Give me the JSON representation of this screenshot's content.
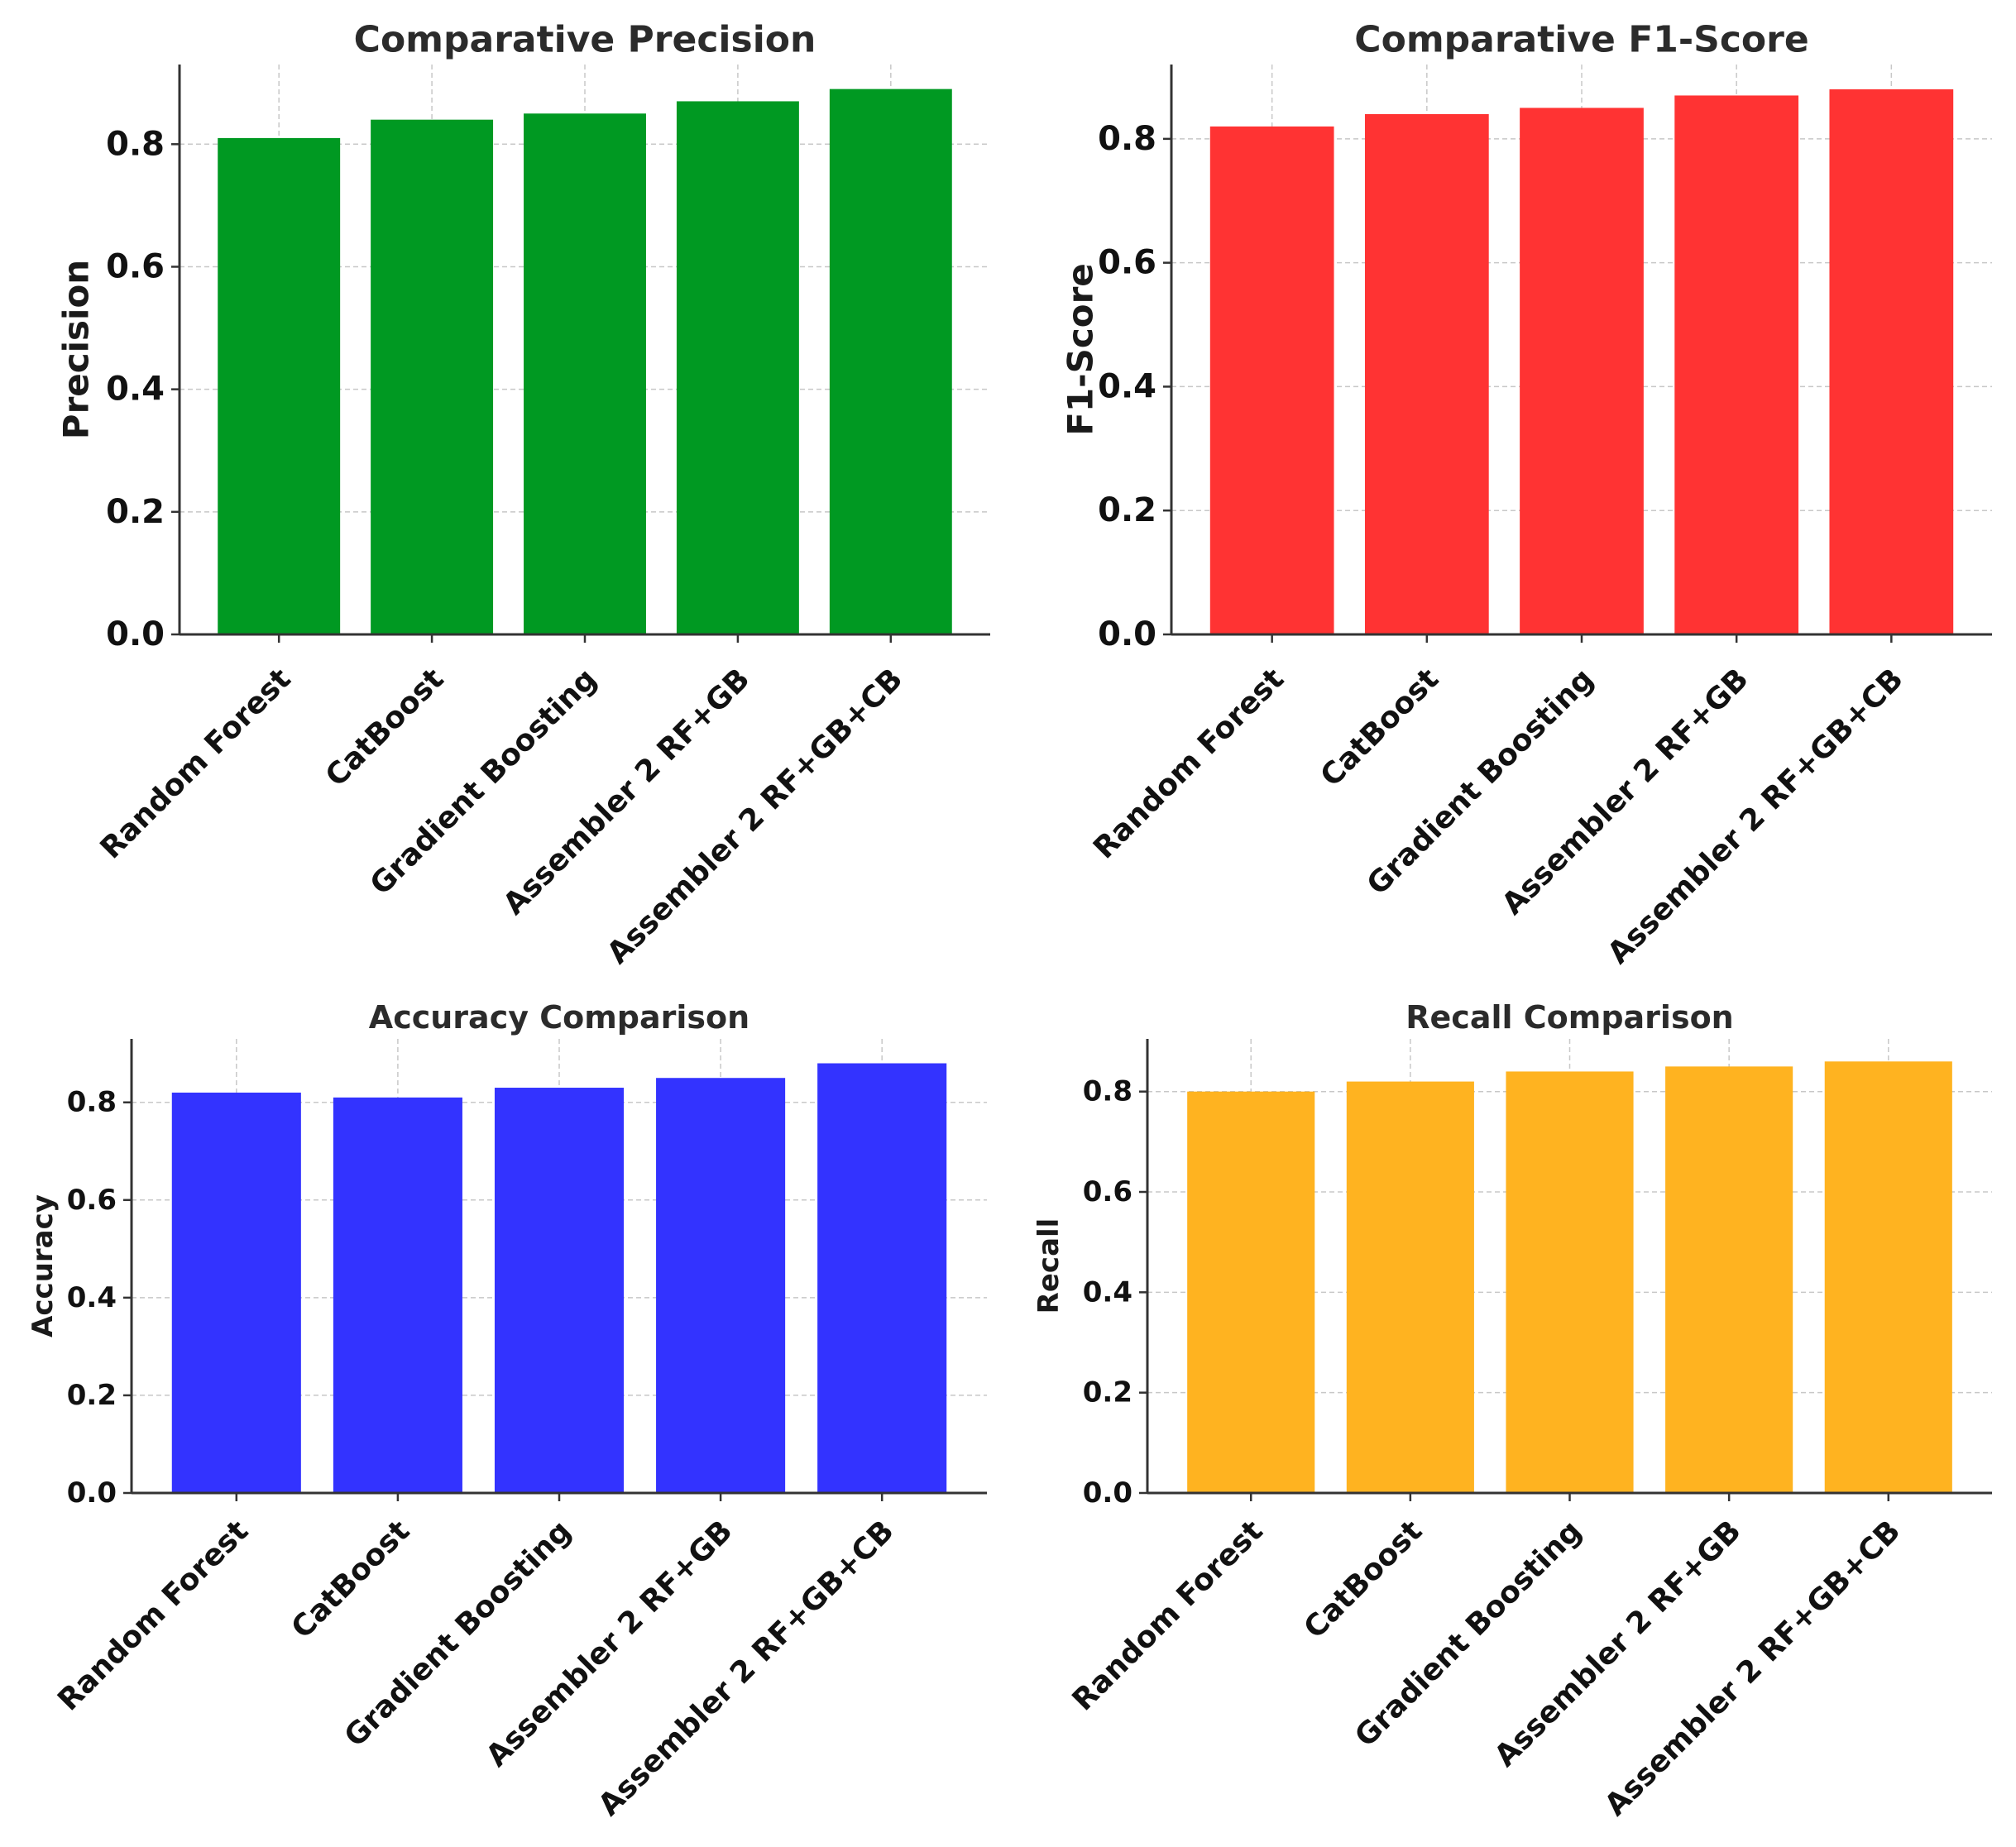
{
  "chart_data": [
    {
      "type": "bar",
      "title": "Comparative Precision",
      "xlabel": "",
      "ylabel": "Precision",
      "categories": [
        "Random Forest",
        "CatBoost",
        "Gradient Boosting",
        "Assembler 2 RF+GB",
        "Assembler 2 RF+GB+CB"
      ],
      "values": [
        0.81,
        0.84,
        0.85,
        0.87,
        0.89
      ],
      "ylim": [
        0,
        0.93
      ],
      "yticks": [
        0.0,
        0.2,
        0.4,
        0.6,
        0.8
      ],
      "ytick_labels": [
        "0.0",
        "0.2",
        "0.4",
        "0.6",
        "0.8"
      ],
      "color": "#009922",
      "grid": true
    },
    {
      "type": "bar",
      "title": "Comparative F1-Score",
      "xlabel": "",
      "ylabel": "F1-Score",
      "categories": [
        "Random Forest",
        "CatBoost",
        "Gradient Boosting",
        "Assembler 2 RF+GB",
        "Assembler 2 RF+GB+CB"
      ],
      "values": [
        0.82,
        0.84,
        0.85,
        0.87,
        0.88
      ],
      "ylim": [
        0,
        0.92
      ],
      "yticks": [
        0.0,
        0.2,
        0.4,
        0.6,
        0.8
      ],
      "ytick_labels": [
        "0.0",
        "0.2",
        "0.4",
        "0.6",
        "0.8"
      ],
      "color": "#ff3333",
      "grid": true
    },
    {
      "type": "bar",
      "title": "Accuracy Comparison",
      "xlabel": "",
      "ylabel": "Accuracy",
      "categories": [
        "Random Forest",
        "CatBoost",
        "Gradient Boosting",
        "Assembler 2 RF+GB",
        "Assembler 2 RF+GB+CB"
      ],
      "values": [
        0.82,
        0.81,
        0.83,
        0.85,
        0.88
      ],
      "ylim": [
        0,
        0.93
      ],
      "yticks": [
        0.0,
        0.2,
        0.4,
        0.6,
        0.8
      ],
      "ytick_labels": [
        "0.0",
        "0.2",
        "0.4",
        "0.6",
        "0.8"
      ],
      "color": "#3333ff",
      "grid": true
    },
    {
      "type": "bar",
      "title": "Recall Comparison",
      "xlabel": "",
      "ylabel": "Recall",
      "categories": [
        "Random Forest",
        "CatBoost",
        "Gradient Boosting",
        "Assembler 2 RF+GB",
        "Assembler 2 RF+GB+CB"
      ],
      "values": [
        0.8,
        0.82,
        0.84,
        0.85,
        0.86
      ],
      "ylim": [
        0,
        0.905
      ],
      "yticks": [
        0.0,
        0.2,
        0.4,
        0.6,
        0.8
      ],
      "ytick_labels": [
        "0.0",
        "0.2",
        "0.4",
        "0.6",
        "0.8"
      ],
      "color": "#ffb320",
      "grid": true
    }
  ]
}
